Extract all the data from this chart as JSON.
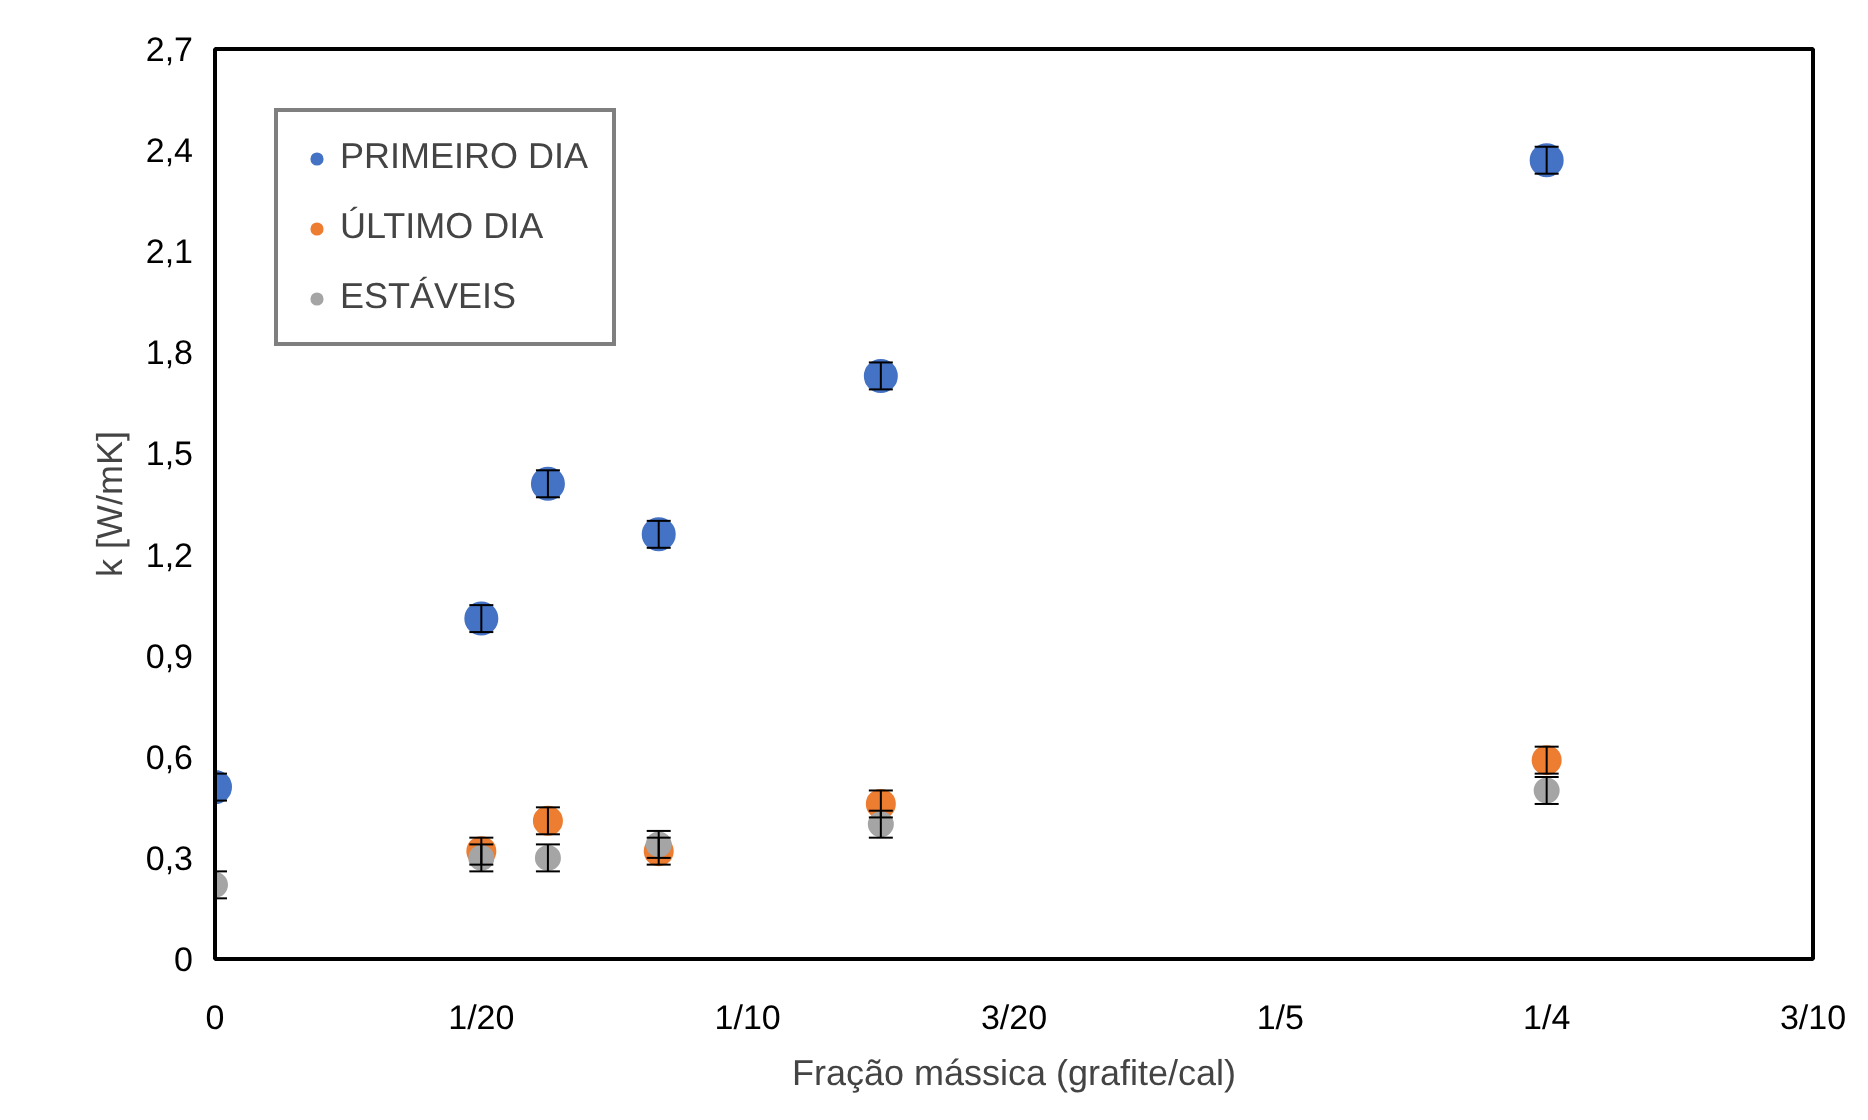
{
  "chart_data": {
    "type": "scatter",
    "xlabel": "Fração mássica (grafite/cal)",
    "ylabel": "k [W/mK]",
    "x": [
      0,
      0.05,
      0.0625,
      0.0833,
      0.125,
      0.25
    ],
    "series": [
      {
        "name": "PRIMEIRO DIA",
        "color": "#4472c4",
        "values": [
          0.51,
          1.01,
          1.41,
          1.26,
          1.73,
          2.37
        ],
        "errors": [
          0.04,
          0.04,
          0.04,
          0.04,
          0.04,
          0.04
        ]
      },
      {
        "name": "ÚLTIMO DIA",
        "color": "#ed7d31",
        "values": [
          null,
          0.32,
          0.41,
          0.32,
          0.46,
          0.59
        ],
        "errors": [
          null,
          0.04,
          0.04,
          0.04,
          0.04,
          0.04
        ]
      },
      {
        "name": "ESTÁVEIS",
        "color": "#a5a5a5",
        "values": [
          0.22,
          0.3,
          0.3,
          0.34,
          0.4,
          0.5
        ],
        "errors": [
          0.04,
          0.04,
          0.04,
          0.04,
          0.04,
          0.04
        ]
      }
    ],
    "xlim": [
      0,
      0.3
    ],
    "ylim": [
      0,
      2.7
    ],
    "xticks": [
      {
        "value": 0,
        "label": "0"
      },
      {
        "value": 0.05,
        "label": "1/20"
      },
      {
        "value": 0.1,
        "label": "1/10"
      },
      {
        "value": 0.15,
        "label": "3/20"
      },
      {
        "value": 0.2,
        "label": "1/5"
      },
      {
        "value": 0.25,
        "label": "1/4"
      },
      {
        "value": 0.3,
        "label": "3/10"
      }
    ],
    "yticks": [
      {
        "value": 0,
        "label": "0"
      },
      {
        "value": 0.3,
        "label": "0,3"
      },
      {
        "value": 0.6,
        "label": "0,6"
      },
      {
        "value": 0.9,
        "label": "0,9"
      },
      {
        "value": 1.2,
        "label": "1,2"
      },
      {
        "value": 1.5,
        "label": "1,5"
      },
      {
        "value": 1.8,
        "label": "1,8"
      },
      {
        "value": 2.1,
        "label": "2,1"
      },
      {
        "value": 2.4,
        "label": "2,4"
      },
      {
        "value": 2.7,
        "label": "2,7"
      }
    ],
    "grid": false,
    "legend": "top left",
    "marker": "circle"
  }
}
